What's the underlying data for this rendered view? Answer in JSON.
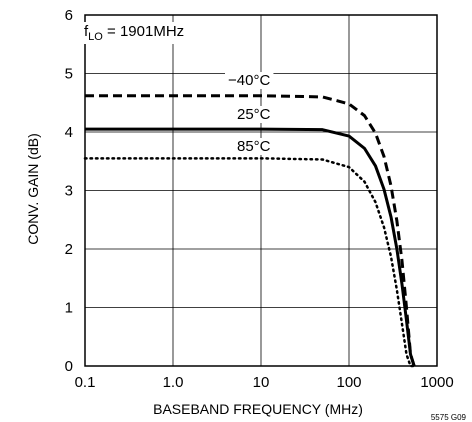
{
  "chart_data": {
    "type": "line",
    "xlabel": "BASEBAND FREQUENCY (MHz)",
    "ylabel": "CONV. GAIN (dB)",
    "x_scale": "log",
    "xlim": [
      0.1,
      1000
    ],
    "ylim": [
      0,
      6
    ],
    "x_ticks": [
      "0.1",
      "1.0",
      "10",
      "100",
      "1000"
    ],
    "y_ticks": [
      "0",
      "1",
      "2",
      "3",
      "4",
      "5",
      "6"
    ],
    "grid": true,
    "annotation": {
      "prefix": "f",
      "subscript": "LO",
      "suffix": " = 1901MHz"
    },
    "figure_id": "5575 G09",
    "series": [
      {
        "name": "−40°C",
        "style": "dashed",
        "x": [
          0.1,
          1,
          10,
          50,
          100,
          150,
          200,
          250,
          300,
          350,
          400,
          450,
          500,
          550
        ],
        "y": [
          4.62,
          4.62,
          4.62,
          4.6,
          4.48,
          4.28,
          3.98,
          3.58,
          3.08,
          2.48,
          1.8,
          1.0,
          0.2,
          0.0
        ]
      },
      {
        "name": "25°C",
        "style": "solid",
        "x": [
          0.1,
          1,
          10,
          50,
          100,
          150,
          200,
          250,
          300,
          350,
          400,
          450,
          500,
          550
        ],
        "y": [
          4.05,
          4.05,
          4.05,
          4.04,
          3.93,
          3.72,
          3.42,
          3.02,
          2.55,
          2.0,
          1.4,
          0.78,
          0.2,
          0.0
        ]
      },
      {
        "name": "85°C",
        "style": "dotted",
        "x": [
          0.1,
          1,
          10,
          50,
          100,
          150,
          200,
          250,
          300,
          350,
          400,
          450,
          500,
          550
        ],
        "y": [
          3.55,
          3.55,
          3.55,
          3.53,
          3.4,
          3.15,
          2.8,
          2.37,
          1.87,
          1.3,
          0.72,
          0.2,
          0.0,
          0.0
        ]
      }
    ]
  }
}
